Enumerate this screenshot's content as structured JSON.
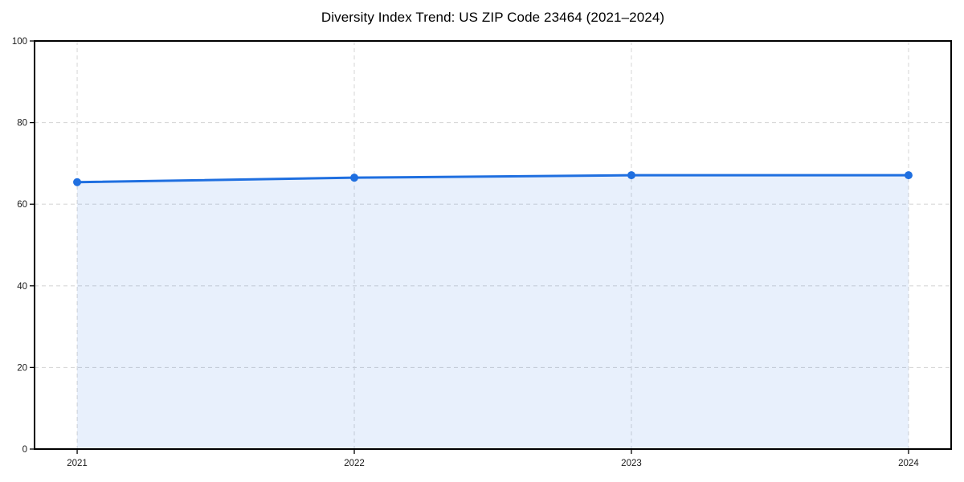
{
  "title": "Diversity Index Trend: US ZIP Code 23464 (2021–2024)",
  "chart_data": {
    "type": "area",
    "title": "Diversity Index Trend: US ZIP Code 23464 (2021–2024)",
    "x": [
      "2021",
      "2022",
      "2023",
      "2024"
    ],
    "series": [
      {
        "name": "Diversity Index",
        "values": [
          65.4,
          66.5,
          67.1,
          67.1
        ]
      }
    ],
    "xlabel": "",
    "ylabel": "",
    "ylim": [
      0,
      100
    ],
    "yticks": [
      0,
      20,
      40,
      60,
      80,
      100
    ],
    "xticklabels": [
      "2021",
      "2022",
      "2023",
      "2024"
    ],
    "grid": "dashed, both axes",
    "legend_position": "none",
    "marker": "circle",
    "colors": {
      "line": "#1f6fe0",
      "fill": "#1f6fe0",
      "fill_opacity": 0.1,
      "grid": "#d9d9d9",
      "axis": "#000000",
      "tick_text": "#1a1a1a"
    }
  }
}
